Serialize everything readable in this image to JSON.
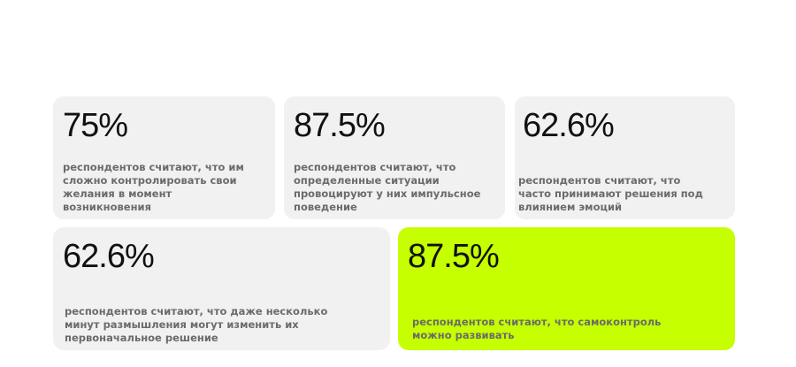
{
  "cards": [
    {
      "stat": "75%",
      "text": "респондентов считают, что им сложно контролировать свои желания в момент возникновения"
    },
    {
      "stat": "87.5%",
      "text": "респондентов считают, что определенные ситуации провоцируют у них импульсное поведение"
    },
    {
      "stat": "62.6%",
      "text": "респондентов считают, что часто принимают решения под влиянием эмоций"
    },
    {
      "stat": "62.6%",
      "text": "респондентов считают, что даже несколько минут размышления могут изменить их первоначальное решение"
    },
    {
      "stat": "87.5%",
      "text": "респондентов считают, что самоконтроль можно развивать"
    }
  ]
}
